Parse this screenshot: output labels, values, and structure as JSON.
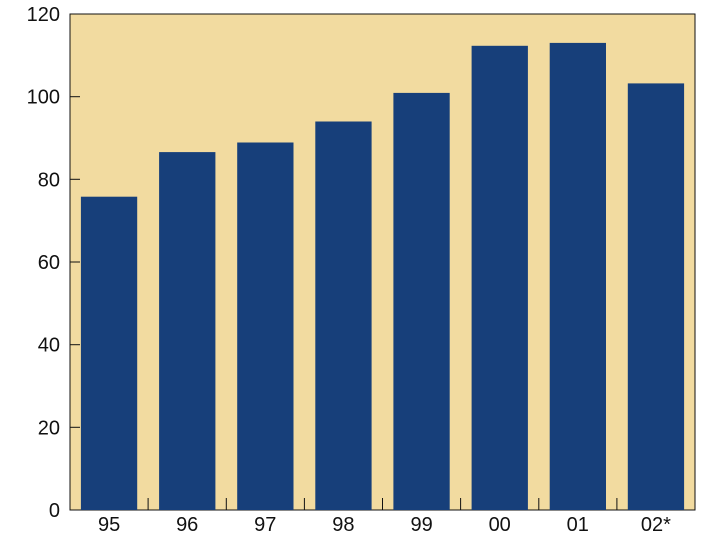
{
  "chart_data": {
    "type": "bar",
    "categories": [
      "95",
      "96",
      "97",
      "98",
      "99",
      "00",
      "01",
      "02*"
    ],
    "values": [
      75.8,
      86.6,
      88.9,
      94.0,
      100.9,
      112.3,
      113.0,
      103.2
    ],
    "ylim": [
      0,
      120
    ],
    "yticks": [
      0,
      20,
      40,
      60,
      80,
      100,
      120
    ],
    "grid": false,
    "colors": {
      "plot_background": "#f2dba0",
      "bar_fill": "#173f7a",
      "axis": "#111111",
      "text": "#111111"
    }
  }
}
